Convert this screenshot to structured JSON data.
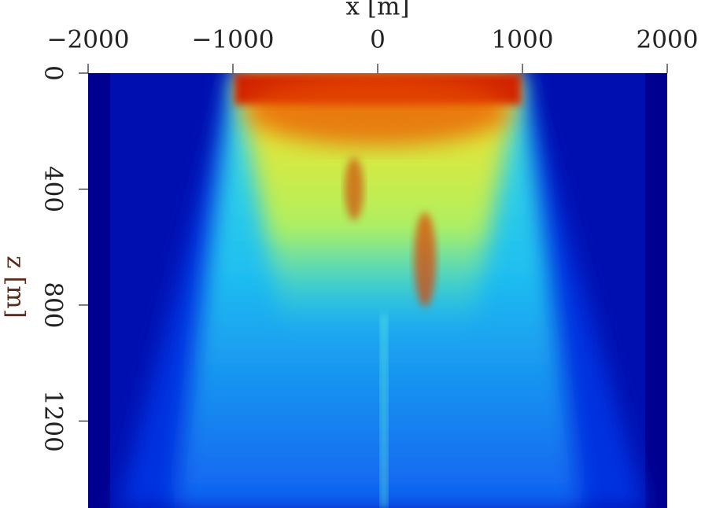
{
  "chart_data": {
    "type": "heatmap",
    "xlabel": "x [m]",
    "ylabel": "z [m]",
    "xlim": [
      -2000,
      2000
    ],
    "xticks": [
      {
        "value": -2000,
        "label": "−2000"
      },
      {
        "value": -1000,
        "label": "−1000"
      },
      0,
      1000,
      2000
    ],
    "ylim": [
      0,
      1500
    ],
    "yticks": [
      0,
      400,
      800,
      1200
    ],
    "y_inverted": true,
    "x_axis_position": "top",
    "grid": false
  }
}
